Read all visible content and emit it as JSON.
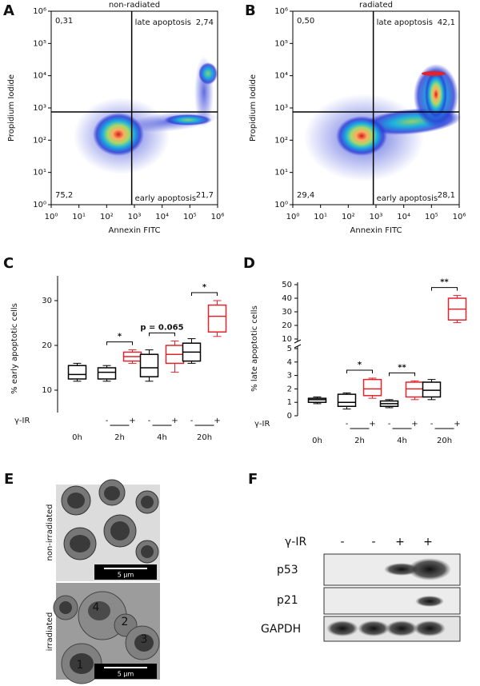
{
  "chart_data": [
    {
      "type": "scatter",
      "panel_label": "A",
      "title": "non-radiated",
      "x_label": "Annexin FITC",
      "y_label": "Propidium Iodide",
      "log_x": true,
      "log_y": true,
      "xlim": [
        1,
        1000000
      ],
      "ylim": [
        1,
        1000000
      ],
      "xticks": [
        {
          "value": 1,
          "label": "10⁰"
        },
        {
          "value": 10,
          "label": "10¹"
        },
        {
          "value": 100,
          "label": "10²"
        },
        {
          "value": 1000,
          "label": "10³"
        },
        {
          "value": 10000,
          "label": "10⁴"
        },
        {
          "value": 100000,
          "label": "10⁵"
        },
        {
          "value": 1000000,
          "label": "10⁶"
        }
      ],
      "yticks": [
        {
          "value": 1,
          "label": "10⁰"
        },
        {
          "value": 10,
          "label": "10¹"
        },
        {
          "value": 100,
          "label": "10²"
        },
        {
          "value": 1000,
          "label": "10³"
        },
        {
          "value": 10000,
          "label": "10⁴"
        },
        {
          "value": 100000,
          "label": "10⁵"
        },
        {
          "value": 1000000,
          "label": "10⁶"
        }
      ],
      "gates": {
        "x": 800,
        "y": 750
      },
      "quadrant_labels": {
        "top_right": "late apoptosis",
        "bottom_right": "early apoptosis"
      },
      "quadrant_values": [
        0.31,
        2.74,
        75.2,
        21.7
      ],
      "value_labels": [
        "0,31",
        "2,74",
        "75,2",
        "21,7"
      ]
    },
    {
      "type": "scatter",
      "panel_label": "B",
      "title": "radiated",
      "x_label": "Annexin FITC",
      "y_label": "Propidium Iodide",
      "log_x": true,
      "log_y": true,
      "xlim": [
        1,
        1000000
      ],
      "ylim": [
        1,
        1000000
      ],
      "xticks": [
        {
          "value": 1,
          "label": "10⁰"
        },
        {
          "value": 10,
          "label": "10¹"
        },
        {
          "value": 100,
          "label": "10²"
        },
        {
          "value": 1000,
          "label": "10³"
        },
        {
          "value": 10000,
          "label": "10⁴"
        },
        {
          "value": 100000,
          "label": "10⁵"
        },
        {
          "value": 1000000,
          "label": "10⁶"
        }
      ],
      "yticks": [
        {
          "value": 1,
          "label": "10⁰"
        },
        {
          "value": 10,
          "label": "10¹"
        },
        {
          "value": 100,
          "label": "10²"
        },
        {
          "value": 1000,
          "label": "10³"
        },
        {
          "value": 10000,
          "label": "10⁴"
        },
        {
          "value": 100000,
          "label": "10⁵"
        },
        {
          "value": 1000000,
          "label": "10⁶"
        }
      ],
      "gates": {
        "x": 800,
        "y": 750
      },
      "quadrant_labels": {
        "top_right": "late apoptosis",
        "bottom_right": "early apoptosis"
      },
      "quadrant_values": [
        0.5,
        42.1,
        29.4,
        28.1
      ],
      "value_labels": [
        "0,50",
        "42,1",
        "29,4",
        "28,1"
      ]
    },
    {
      "type": "box",
      "panel_label": "C",
      "y_label": "% early apoptotic cells",
      "ylim": [
        5,
        35
      ],
      "yticks": [
        10,
        20,
        30
      ],
      "categories": [
        "0h",
        "2h",
        "4h",
        "20h"
      ],
      "treatment_label": "γ-IR",
      "treatment_signs": [
        "-",
        "+"
      ],
      "control_color": "#000000",
      "irradiated_color": "#e0242b",
      "control": [
        {
          "min": 12,
          "q1": 12.5,
          "median": 13.5,
          "q3": 15.5,
          "max": 16
        },
        {
          "min": 12,
          "q1": 12.5,
          "median": 14,
          "q3": 15,
          "max": 15.5
        },
        {
          "min": 12,
          "q1": 13,
          "median": 15,
          "q3": 18,
          "max": 19
        },
        {
          "min": 16,
          "q1": 16.5,
          "median": 18.5,
          "q3": 20.5,
          "max": 21.5
        }
      ],
      "irradiated": [
        null,
        {
          "min": 16,
          "q1": 16.5,
          "median": 17.5,
          "q3": 18.5,
          "max": 19
        },
        {
          "min": 14,
          "q1": 16,
          "median": 18,
          "q3": 20,
          "max": 21
        },
        {
          "min": 22,
          "q1": 23,
          "median": 26.5,
          "q3": 29,
          "max": 30
        }
      ],
      "annotations": [
        null,
        "*",
        "p = 0.065",
        "*"
      ]
    },
    {
      "type": "box",
      "panel_label": "D",
      "y_label": "% late apoptotic cells",
      "ylim": [
        0,
        5
      ],
      "yticks": [
        0,
        1,
        2,
        3,
        4,
        5
      ],
      "ylim_upper": [
        10,
        50
      ],
      "yticks_upper": [
        10,
        20,
        30,
        40,
        50
      ],
      "categories": [
        "0h",
        "2h",
        "4h",
        "20h"
      ],
      "treatment_label": "γ-IR",
      "treatment_signs": [
        "-",
        "+"
      ],
      "control_color": "#000000",
      "irradiated_color": "#e0242b",
      "control": [
        {
          "min": 0.9,
          "q1": 1.0,
          "median": 1.2,
          "q3": 1.3,
          "max": 1.4
        },
        {
          "min": 0.5,
          "q1": 0.7,
          "median": 1.0,
          "q3": 1.6,
          "max": 1.7
        },
        {
          "min": 0.6,
          "q1": 0.7,
          "median": 0.9,
          "q3": 1.1,
          "max": 1.2
        },
        {
          "min": 1.2,
          "q1": 1.4,
          "median": 1.9,
          "q3": 2.5,
          "max": 2.7
        }
      ],
      "irradiated": [
        null,
        {
          "min": 1.3,
          "q1": 1.5,
          "median": 2.0,
          "q3": 2.7,
          "max": 2.8
        },
        {
          "min": 1.2,
          "q1": 1.4,
          "median": 2.0,
          "q3": 2.5,
          "max": 2.6
        },
        {
          "min": 22,
          "q1": 24,
          "median": 32,
          "q3": 40,
          "max": 42
        }
      ],
      "annotations": [
        null,
        "*",
        "**",
        "**"
      ]
    }
  ],
  "panel_e": {
    "label": "E",
    "top_caption": "non-irradiated",
    "bottom_caption": "irradiated",
    "scale_bar": "5 µm",
    "cell_numbers": [
      "1",
      "2",
      "3",
      "4"
    ]
  },
  "panel_f": {
    "label": "F",
    "treatment_label": "γ-IR",
    "lanes": [
      "-",
      "-",
      "+",
      "+"
    ],
    "rows": [
      "p53",
      "p21",
      "GAPDH"
    ]
  }
}
